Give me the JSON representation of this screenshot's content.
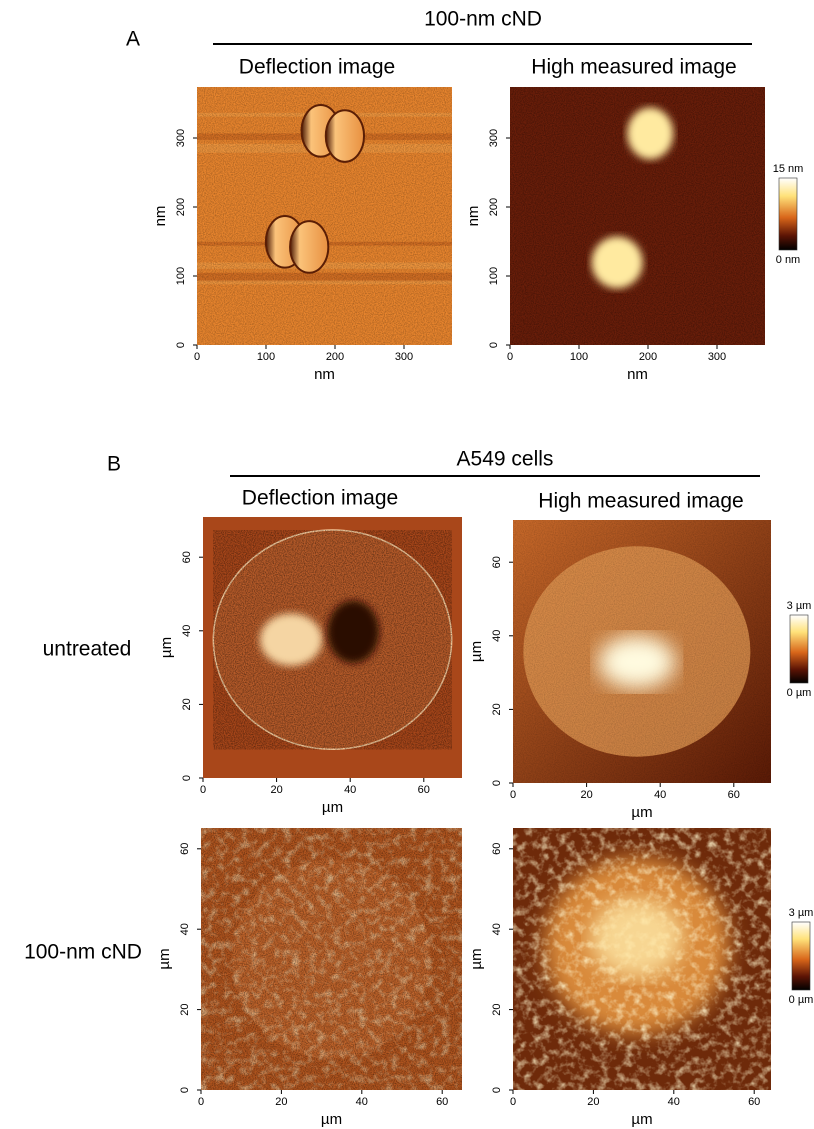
{
  "panel_a": {
    "label": "A",
    "title": "100-nm cND",
    "images": [
      {
        "title": "Deflection image",
        "x_label": "nm",
        "y_label": "nm",
        "x_ticks": [
          0,
          100,
          200,
          300
        ],
        "y_ticks": [
          0,
          100,
          200,
          300
        ]
      },
      {
        "title": "High measured image",
        "x_label": "nm",
        "y_label": "nm",
        "x_ticks": [
          0,
          100,
          200,
          300
        ],
        "y_ticks": [
          0,
          100,
          200,
          300
        ]
      }
    ],
    "colorbar": {
      "max_label": "15 nm",
      "min_label": "0 nm"
    }
  },
  "panel_b": {
    "label": "B",
    "title": "A549 cells",
    "column_titles": [
      "Deflection image",
      "High measured image"
    ],
    "rows": [
      {
        "label": "untreated",
        "images": [
          {
            "x_label": "µm",
            "y_label": "µm",
            "x_ticks": [
              0,
              20,
              40,
              60
            ],
            "y_ticks": [
              0,
              20,
              40,
              60
            ]
          },
          {
            "x_label": "µm",
            "y_label": "µm",
            "x_ticks": [
              0,
              20,
              40,
              60
            ],
            "y_ticks": [
              0,
              20,
              40,
              60
            ]
          }
        ],
        "colorbar": {
          "max_label": "3 µm",
          "min_label": "0 µm"
        }
      },
      {
        "label": "100-nm cND",
        "images": [
          {
            "x_label": "µm",
            "y_label": "µm",
            "x_ticks": [
              0,
              20,
              40,
              60
            ],
            "y_ticks": [
              0,
              20,
              40,
              60
            ]
          },
          {
            "x_label": "µm",
            "y_label": "µm",
            "x_ticks": [
              0,
              20,
              40,
              60
            ],
            "y_ticks": [
              0,
              20,
              40,
              60
            ]
          }
        ],
        "colorbar": {
          "max_label": "3 µm",
          "min_label": "0 µm"
        }
      }
    ]
  }
}
